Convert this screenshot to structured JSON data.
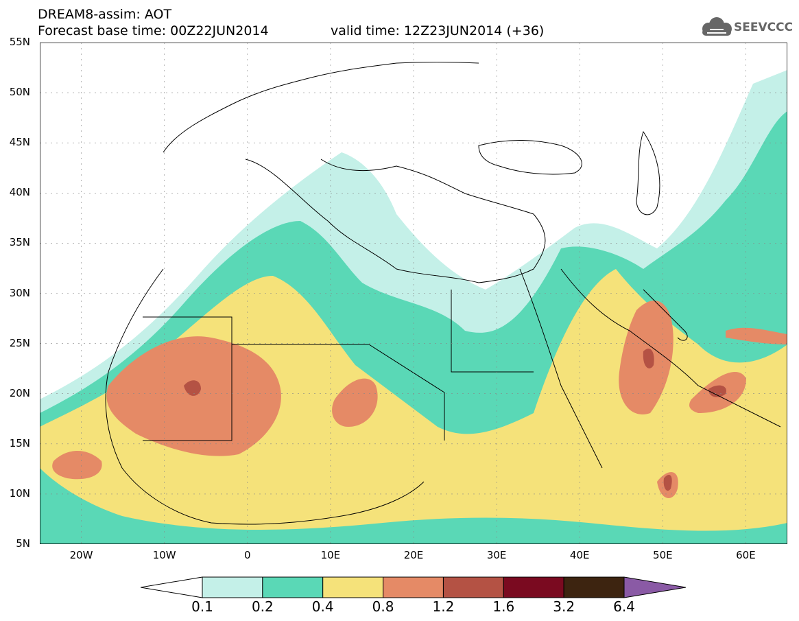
{
  "header": {
    "line1": "DREAM8-assim: AOT",
    "line2": "Forecast base time: 00Z22JUN2014",
    "valid": "valid time: 12Z23JUN2014 (+36)"
  },
  "logo": {
    "text": "SEEVCCC",
    "icon": "cloud-icon"
  },
  "map": {
    "lat_labels": [
      "55N",
      "50N",
      "45N",
      "40N",
      "35N",
      "30N",
      "25N",
      "20N",
      "15N",
      "10N",
      "5N"
    ],
    "lon_labels": [
      "20W",
      "10W",
      "0",
      "10E",
      "20E",
      "30E",
      "40E",
      "50E",
      "60E"
    ],
    "lon_range": [
      -25,
      65
    ],
    "lat_range": [
      5,
      55
    ]
  },
  "colorbar": {
    "labels": [
      "0.1",
      "0.2",
      "0.4",
      "0.8",
      "1.2",
      "1.6",
      "3.2",
      "6.4"
    ],
    "colors": [
      "#ffffff",
      "#c4f0e8",
      "#5ad8b6",
      "#f5e27a",
      "#e58a66",
      "#b45244",
      "#7a0a20",
      "#3d2410",
      "#8a5aa5"
    ]
  }
}
